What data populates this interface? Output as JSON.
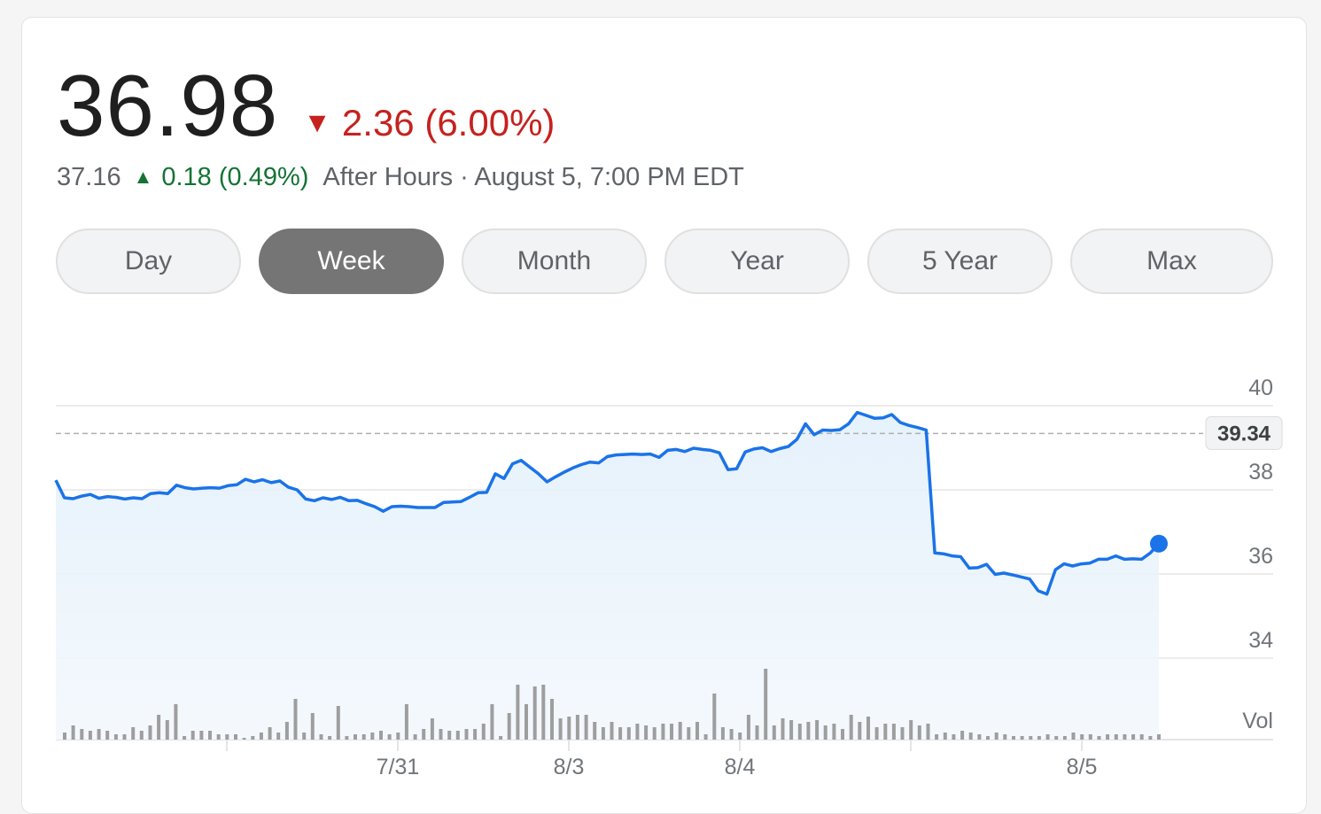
{
  "quote": {
    "price": "36.98",
    "change_arrow": "▼",
    "change": "2.36 (6.00%)",
    "change_color": "#c5221f",
    "after_hours_price": "37.16",
    "after_hours_arrow": "▲",
    "after_hours_change": "0.18 (0.49%)",
    "after_hours_color": "#137333",
    "after_hours_label": "After Hours · August 5, 7:00 PM EDT"
  },
  "tabs": [
    {
      "label": "Day",
      "active": false
    },
    {
      "label": "Week",
      "active": true
    },
    {
      "label": "Month",
      "active": false
    },
    {
      "label": "Year",
      "active": false
    },
    {
      "label": "5 Year",
      "active": false
    },
    {
      "label": "Max",
      "active": false
    }
  ],
  "chart_data": {
    "type": "line",
    "line_color": "#1a73e8",
    "y_ticks": [
      "40",
      "38",
      "36",
      "34"
    ],
    "ylim": [
      34,
      40
    ],
    "previous_close": 39.34,
    "previous_close_label": "39.34",
    "x_labels": [
      "7/31",
      "8/3",
      "8/4",
      "8/5"
    ],
    "volume_label": "Vol",
    "price_series": [
      38.23,
      37.81,
      37.79,
      37.85,
      37.89,
      37.8,
      37.84,
      37.82,
      37.78,
      37.81,
      37.79,
      37.91,
      37.93,
      37.91,
      38.11,
      38.05,
      38.02,
      38.04,
      38.05,
      38.04,
      38.1,
      38.12,
      38.25,
      38.19,
      38.24,
      38.17,
      38.21,
      38.06,
      38.0,
      37.78,
      37.74,
      37.81,
      37.77,
      37.82,
      37.74,
      37.75,
      37.67,
      37.6,
      37.49,
      37.6,
      37.61,
      37.6,
      37.58,
      37.58,
      37.58,
      37.7,
      37.71,
      37.72,
      37.82,
      37.93,
      37.94,
      38.38,
      38.27,
      38.62,
      38.7,
      38.54,
      38.38,
      38.19,
      38.31,
      38.42,
      38.52,
      38.6,
      38.66,
      38.64,
      38.79,
      38.83,
      38.84,
      38.85,
      38.84,
      38.85,
      38.77,
      38.94,
      38.96,
      38.91,
      38.99,
      38.96,
      38.94,
      38.88,
      38.48,
      38.5,
      38.9,
      38.97,
      39.0,
      38.91,
      38.98,
      39.03,
      39.2,
      39.57,
      39.31,
      39.42,
      39.41,
      39.43,
      39.57,
      39.84,
      39.77,
      39.7,
      39.71,
      39.79,
      39.6,
      39.53,
      39.48,
      39.42,
      36.5,
      36.48,
      36.43,
      36.41,
      36.14,
      36.15,
      36.23,
      35.99,
      36.02,
      35.98,
      35.93,
      35.88,
      35.6,
      35.52,
      36.1,
      36.24,
      36.19,
      36.24,
      36.26,
      36.35,
      36.35,
      36.43,
      36.35,
      36.36,
      36.35,
      36.5,
      36.72
    ],
    "volume_series": [
      4,
      8,
      6,
      5,
      6,
      5,
      3,
      3,
      7,
      5,
      8,
      14,
      11,
      20,
      2,
      5,
      5,
      5,
      3,
      3,
      3,
      1,
      2,
      4,
      7,
      4,
      10,
      23,
      4,
      15,
      3,
      2,
      19,
      2,
      3,
      3,
      4,
      5,
      3,
      4,
      20,
      3,
      6,
      12,
      6,
      5,
      5,
      6,
      6,
      9,
      20,
      2,
      15,
      31,
      20,
      30,
      31,
      23,
      12,
      13,
      14,
      14,
      10,
      7,
      10,
      7,
      7,
      9,
      8,
      7,
      9,
      9,
      10,
      7,
      10,
      3,
      26,
      7,
      6,
      4,
      14,
      8,
      40,
      8,
      12,
      11,
      9,
      10,
      11,
      8,
      9,
      6,
      14,
      10,
      13,
      7,
      9,
      9,
      7,
      11,
      8,
      9,
      3,
      4,
      3,
      5,
      4,
      3,
      2,
      4,
      3,
      2,
      2,
      2,
      2,
      3,
      2,
      2,
      4,
      3,
      3,
      2,
      3,
      3,
      3,
      3,
      3,
      2,
      3
    ]
  }
}
